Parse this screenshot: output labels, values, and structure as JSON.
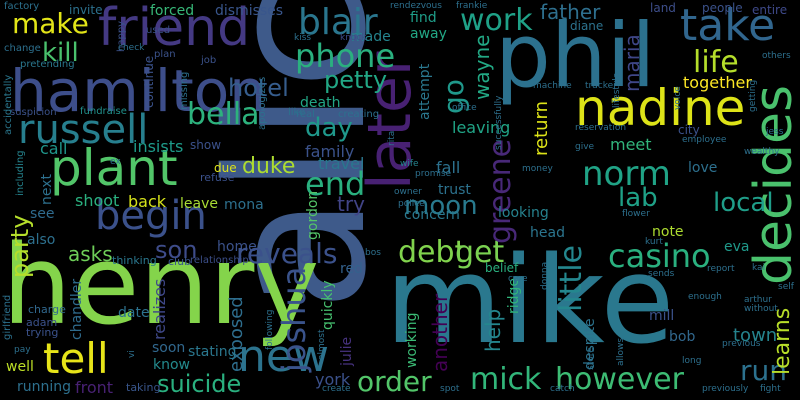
{
  "background": "#000000",
  "words": [
    {
      "text": "alice",
      "color": "#3e5a8a"
    },
    {
      "text": "henry",
      "color": "#84d44b"
    },
    {
      "text": "mike",
      "color": "#2a788e"
    },
    {
      "text": "phil",
      "color": "#2c718e"
    },
    {
      "text": "hamilton",
      "color": "#3d4e8a"
    },
    {
      "text": "friend",
      "color": "#443983"
    },
    {
      "text": "later",
      "color": "#482173"
    },
    {
      "text": "nadine",
      "color": "#dde318"
    },
    {
      "text": "take",
      "color": "#31668e"
    },
    {
      "text": "plant",
      "color": "#52c569"
    },
    {
      "text": "decides",
      "color": "#4ac16d"
    },
    {
      "text": "russell",
      "color": "#277f8e"
    },
    {
      "text": "tell",
      "color": "#e7e419"
    },
    {
      "text": "begin",
      "color": "#3b518b"
    },
    {
      "text": "new",
      "color": "#2c738e"
    },
    {
      "text": "joshua",
      "color": "#3a538b"
    },
    {
      "text": "mick",
      "color": "#32b67a"
    },
    {
      "text": "however",
      "color": "#3dbc74"
    },
    {
      "text": "order",
      "color": "#52c569"
    },
    {
      "text": "casino",
      "color": "#2ab07f"
    },
    {
      "text": "norm",
      "color": "#20a386"
    },
    {
      "text": "blair",
      "color": "#2a768e"
    },
    {
      "text": "phone",
      "color": "#2ab07f"
    },
    {
      "text": "work",
      "color": "#1fa187"
    },
    {
      "text": "make",
      "color": "#e2e418"
    },
    {
      "text": "kill",
      "color": "#4ac16d"
    },
    {
      "text": "end",
      "color": "#2ab07f"
    },
    {
      "text": "bella",
      "color": "#2db27d"
    },
    {
      "text": "debt",
      "color": "#81d34d"
    },
    {
      "text": "get",
      "color": "#7ad151"
    },
    {
      "text": "reveals",
      "color": "#3b518b"
    },
    {
      "text": "life",
      "color": "#b5de2b"
    },
    {
      "text": "little",
      "color": "#24878e"
    },
    {
      "text": "run",
      "color": "#2c718e"
    },
    {
      "text": "suicide",
      "color": "#2ab07f"
    },
    {
      "text": "lab",
      "color": "#1fa187"
    },
    {
      "text": "local",
      "color": "#1f9e89"
    },
    {
      "text": "party",
      "color": "#b5de2b"
    },
    {
      "text": "moon",
      "color": "#297a8e"
    },
    {
      "text": "day",
      "color": "#1f988b"
    },
    {
      "text": "son",
      "color": "#3e4c8a"
    },
    {
      "text": "hotel",
      "color": "#365d8d"
    },
    {
      "text": "petty",
      "color": "#22a785"
    },
    {
      "text": "greene",
      "color": "#482878"
    },
    {
      "text": "go",
      "color": "#1f988b"
    },
    {
      "text": "asks",
      "color": "#6ece58"
    },
    {
      "text": "father",
      "color": "#2e6f8e"
    },
    {
      "text": "maria",
      "color": "#3f4788"
    },
    {
      "text": "learns",
      "color": "#b8de29"
    },
    {
      "text": "try",
      "color": "#414487"
    },
    {
      "text": "wayne",
      "color": "#22a884"
    },
    {
      "text": "help",
      "color": "#24868e"
    },
    {
      "text": "exposed",
      "color": "#2e6e8e"
    },
    {
      "text": "another",
      "color": "#440154"
    },
    {
      "text": "front",
      "color": "#482173"
    },
    {
      "text": "york",
      "color": "#3b518b"
    },
    {
      "text": "town",
      "color": "#25848e"
    },
    {
      "text": "duke",
      "color": "#addc30"
    },
    {
      "text": "insists",
      "color": "#1e9b8a"
    },
    {
      "text": "call",
      "color": "#1f968b"
    },
    {
      "text": "family",
      "color": "#3b528b"
    },
    {
      "text": "travel",
      "color": "#2a768e"
    },
    {
      "text": "fall",
      "color": "#2c718e"
    },
    {
      "text": "return",
      "color": "#dde318"
    },
    {
      "text": "leaving",
      "color": "#20a486"
    },
    {
      "text": "meet",
      "color": "#31b57b"
    },
    {
      "text": "together",
      "color": "#fde725"
    },
    {
      "text": "shoot",
      "color": "#2ab07f"
    },
    {
      "text": "back",
      "color": "#d5e21a"
    },
    {
      "text": "leave",
      "color": "#a8db34"
    },
    {
      "text": "mona",
      "color": "#2d708e"
    },
    {
      "text": "home",
      "color": "#3b528b"
    },
    {
      "text": "looking",
      "color": "#26828e"
    },
    {
      "text": "concern",
      "color": "#2a788e"
    },
    {
      "text": "note",
      "color": "#addc30"
    },
    {
      "text": "eva",
      "color": "#1f998a"
    },
    {
      "text": "love",
      "color": "#2d708e"
    },
    {
      "text": "bob",
      "color": "#31688e"
    },
    {
      "text": "mill",
      "color": "#3b528b"
    },
    {
      "text": "soon",
      "color": "#31688e"
    },
    {
      "text": "stating",
      "color": "#2a778e"
    },
    {
      "text": "realizes",
      "color": "#3f4889"
    },
    {
      "text": "date",
      "color": "#2c728e"
    },
    {
      "text": "chandler",
      "color": "#2f6c8e"
    },
    {
      "text": "know",
      "color": "#238a8d"
    },
    {
      "text": "quickly",
      "color": "#46c06f"
    },
    {
      "text": "julie",
      "color": "#46327e"
    },
    {
      "text": "working",
      "color": "#3bbb75"
    },
    {
      "text": "despite",
      "color": "#2c738e"
    },
    {
      "text": "ridge",
      "color": "#31b57b"
    },
    {
      "text": "belief",
      "color": "#2ab07f"
    },
    {
      "text": "trust",
      "color": "#2c728e"
    },
    {
      "text": "see",
      "color": "#2f6b8e"
    },
    {
      "text": "also",
      "color": "#2d708e"
    },
    {
      "text": "next",
      "color": "#2d708e"
    },
    {
      "text": "running",
      "color": "#2d708e"
    },
    {
      "text": "well",
      "color": "#bddf26"
    },
    {
      "text": "red",
      "color": "#34618d"
    },
    {
      "text": "gordon",
      "color": "#54c568"
    },
    {
      "text": "head",
      "color": "#2b758e"
    },
    {
      "text": "find",
      "color": "#1f9e89"
    },
    {
      "text": "away",
      "color": "#22a785"
    },
    {
      "text": "attempt",
      "color": "#2a778e"
    },
    {
      "text": "death",
      "color": "#22a785"
    },
    {
      "text": "made",
      "color": "#25848e"
    },
    {
      "text": "dismisses",
      "color": "#39568c"
    },
    {
      "text": "forced",
      "color": "#37b878"
    },
    {
      "text": "invite",
      "color": "#2c718e"
    },
    {
      "text": "land",
      "color": "#3d4e8a"
    },
    {
      "text": "people",
      "color": "#3b528b"
    },
    {
      "text": "entire",
      "color": "#3e4989"
    },
    {
      "text": "diane",
      "color": "#2c728e"
    },
    {
      "text": "city",
      "color": "#3b518b"
    },
    {
      "text": "show",
      "color": "#3b518b"
    },
    {
      "text": "due",
      "color": "#dde318"
    },
    {
      "text": "refuse",
      "color": "#3b518b"
    },
    {
      "text": "thinking",
      "color": "#2a778e"
    },
    {
      "text": "club",
      "color": "#39568c"
    },
    {
      "text": "relationship",
      "color": "#3c4f8a"
    },
    {
      "text": "taking",
      "color": "#39568c"
    },
    {
      "text": "adam",
      "color": "#3b528b"
    },
    {
      "text": "trying",
      "color": "#3b528b"
    },
    {
      "text": "charge",
      "color": "#31688e"
    },
    {
      "text": "girlfriend",
      "color": "#2c718e"
    },
    {
      "text": "including",
      "color": "#25848e"
    },
    {
      "text": "fundraise",
      "color": "#21918c"
    },
    {
      "text": "suspicion",
      "color": "#3b528b"
    },
    {
      "text": "accidentally",
      "color": "#2a778e"
    },
    {
      "text": "pretending",
      "color": "#2a778e"
    },
    {
      "text": "change",
      "color": "#2d708e"
    },
    {
      "text": "factory",
      "color": "#2c718e"
    },
    {
      "text": "happy",
      "color": "#3b528b"
    },
    {
      "text": "continue",
      "color": "#3b528b"
    },
    {
      "text": "used",
      "color": "#3b528b"
    },
    {
      "text": "plan",
      "color": "#3b528b"
    },
    {
      "text": "missing",
      "color": "#2d708e"
    },
    {
      "text": "job",
      "color": "#3b528b"
    },
    {
      "text": "apologizes",
      "color": "#2d708e"
    },
    {
      "text": "real",
      "color": "#2c718e"
    },
    {
      "text": "like",
      "color": "#2c718e"
    },
    {
      "text": "creating",
      "color": "#2c718e"
    },
    {
      "text": "knock",
      "color": "#3e4c8a"
    },
    {
      "text": "rendezvous",
      "color": "#2d708e"
    },
    {
      "text": "frankie",
      "color": "#2d708e"
    },
    {
      "text": "office",
      "color": "#2d708e"
    },
    {
      "text": "wife",
      "color": "#25848e"
    },
    {
      "text": "promise",
      "color": "#2d708e"
    },
    {
      "text": "owner",
      "color": "#2d708e"
    },
    {
      "text": "police",
      "color": "#2d708e"
    },
    {
      "text": "money",
      "color": "#2d708e"
    },
    {
      "text": "successfully",
      "color": "#2d708e"
    },
    {
      "text": "machine",
      "color": "#2d708e"
    },
    {
      "text": "tracker",
      "color": "#2d708e"
    },
    {
      "text": "lifestyle",
      "color": "#2d708e"
    },
    {
      "text": "reservation",
      "color": "#2d708e"
    },
    {
      "text": "employee",
      "color": "#2d708e"
    },
    {
      "text": "give",
      "color": "#2d708e"
    },
    {
      "text": "flower",
      "color": "#2d708e"
    },
    {
      "text": "kurt",
      "color": "#2d708e"
    },
    {
      "text": "report",
      "color": "#2d708e"
    },
    {
      "text": "kai",
      "color": "#2d708e"
    },
    {
      "text": "sends",
      "color": "#2d708e"
    },
    {
      "text": "enough",
      "color": "#2d708e"
    },
    {
      "text": "arthur",
      "color": "#2d708e"
    },
    {
      "text": "without",
      "color": "#2d708e"
    },
    {
      "text": "previous",
      "color": "#2d708e"
    },
    {
      "text": "previously",
      "color": "#2d708e"
    },
    {
      "text": "long",
      "color": "#2d708e"
    },
    {
      "text": "allows",
      "color": "#2d708e"
    },
    {
      "text": "fight",
      "color": "#2d708e"
    },
    {
      "text": "self",
      "color": "#2d708e"
    },
    {
      "text": "voice",
      "color": "#2d708e"
    },
    {
      "text": "getting",
      "color": "#2d708e"
    },
    {
      "text": "others",
      "color": "#2d708e"
    },
    {
      "text": "wealthy",
      "color": "#2d708e"
    },
    {
      "text": "jess",
      "color": "#2d708e"
    },
    {
      "text": "care",
      "color": "#2d708e"
    },
    {
      "text": "catch",
      "color": "#2d708e"
    },
    {
      "text": "store",
      "color": "#2d708e"
    },
    {
      "text": "donna",
      "color": "#2d708e"
    },
    {
      "text": "bos",
      "color": "#2d708e"
    },
    {
      "text": "spot",
      "color": "#2d708e"
    },
    {
      "text": "create",
      "color": "#2d708e"
    },
    {
      "text": "almost",
      "color": "#2d708e"
    },
    {
      "text": "following",
      "color": "#2d708e"
    },
    {
      "text": "pay",
      "color": "#2d708e"
    },
    {
      "text": "vi",
      "color": "#2d708e"
    },
    {
      "text": "kiss",
      "color": "#2d708e"
    },
    {
      "text": "ex",
      "color": "#2d708e"
    },
    {
      "text": "rita",
      "color": "#2d708e"
    },
    {
      "text": "check",
      "color": "#2d708e"
    }
  ]
}
